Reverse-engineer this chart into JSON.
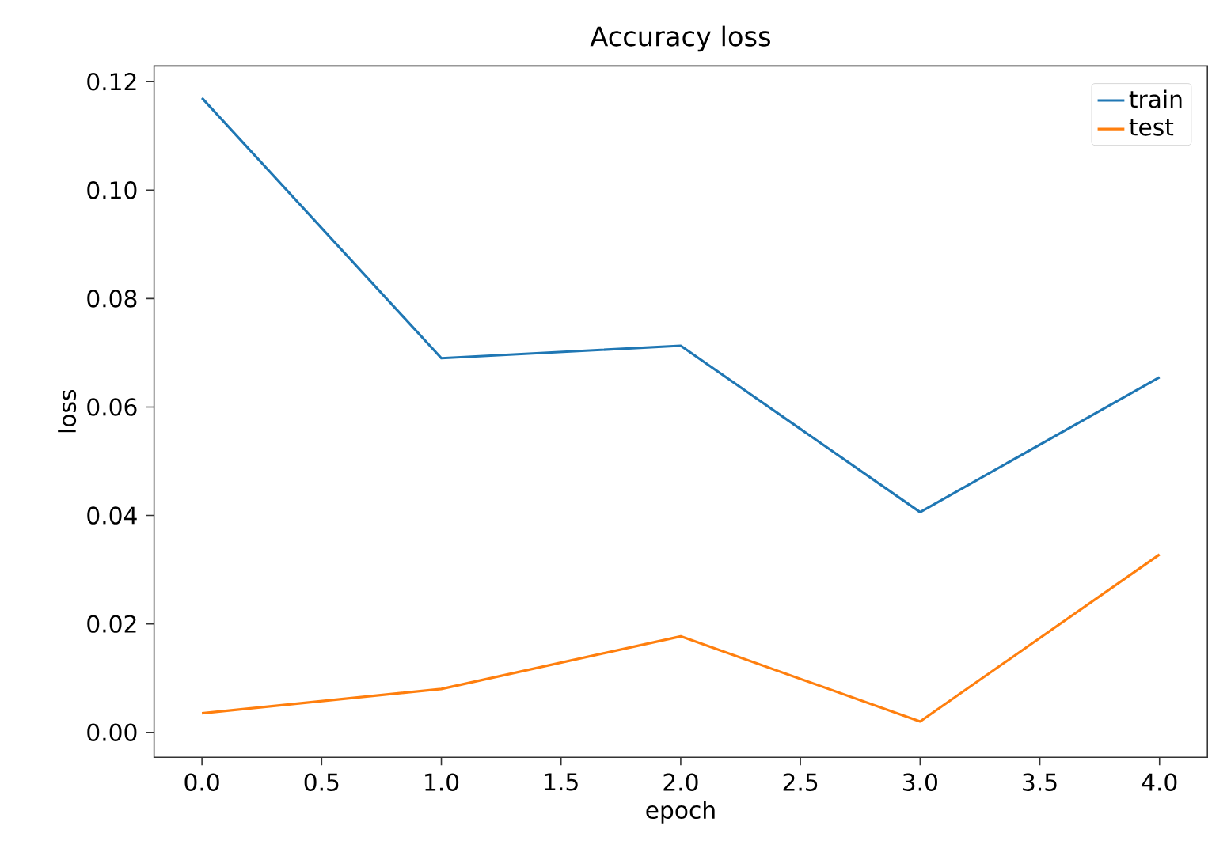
{
  "chart_data": {
    "type": "line",
    "title": "Accuracy loss",
    "xlabel": "epoch",
    "ylabel": "loss",
    "x": [
      0,
      1,
      2,
      3,
      4
    ],
    "series": [
      {
        "name": "train",
        "color": "#1f77b4",
        "values": [
          0.117,
          0.069,
          0.0713,
          0.0406,
          0.0655
        ]
      },
      {
        "name": "test",
        "color": "#ff7f0e",
        "values": [
          0.0035,
          0.008,
          0.0177,
          0.002,
          0.0328
        ]
      }
    ],
    "xlim": [
      -0.2,
      4.2
    ],
    "ylim": [
      -0.0046,
      0.1229
    ],
    "xticks": [
      {
        "value": 0,
        "label": "0.0"
      },
      {
        "value": 0.5,
        "label": "0.5"
      },
      {
        "value": 1,
        "label": "1.0"
      },
      {
        "value": 1.5,
        "label": "1.5"
      },
      {
        "value": 2,
        "label": "2.0"
      },
      {
        "value": 2.5,
        "label": "2.5"
      },
      {
        "value": 3,
        "label": "3.0"
      },
      {
        "value": 3.5,
        "label": "3.5"
      },
      {
        "value": 4,
        "label": "4.0"
      }
    ],
    "yticks": [
      {
        "value": 0,
        "label": "0.00"
      },
      {
        "value": 0.02,
        "label": "0.02"
      },
      {
        "value": 0.04,
        "label": "0.04"
      },
      {
        "value": 0.06,
        "label": "0.06"
      },
      {
        "value": 0.08,
        "label": "0.08"
      },
      {
        "value": 0.1,
        "label": "0.10"
      },
      {
        "value": 0.12,
        "label": "0.12"
      }
    ],
    "legend": "top right",
    "grid": false,
    "marker": "none",
    "line_style": "solid"
  }
}
